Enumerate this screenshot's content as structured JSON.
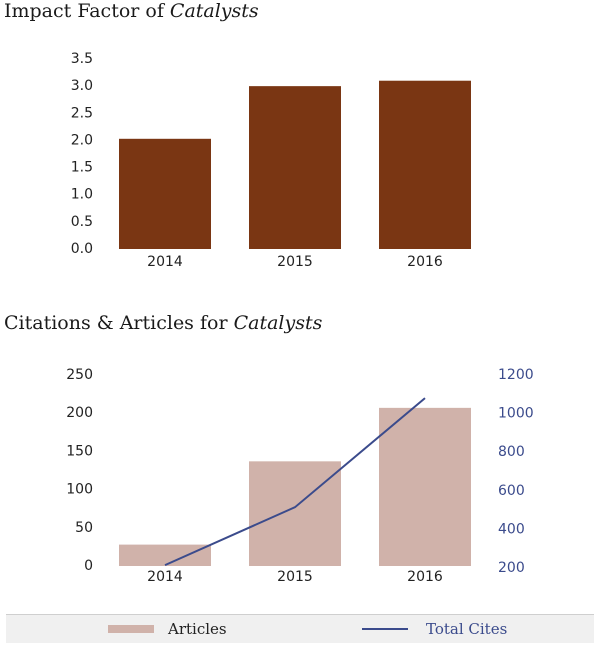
{
  "charts": {
    "impact": {
      "title_prefix": "Impact Factor of ",
      "title_journal": "Catalysts"
    },
    "citations": {
      "title_prefix": "Citations & Articles for ",
      "title_journal": "Catalysts"
    }
  },
  "legend": {
    "articles_label": "Articles",
    "cites_label": "Total Cites"
  },
  "colors": {
    "impact_bar": "#7a3613",
    "articles_bar": "#d0b2aa",
    "cites_line": "#3b4b8c",
    "right_axis_text": "#3b4b8c"
  },
  "chart_data": [
    {
      "type": "bar",
      "title": "Impact Factor of Catalysts",
      "categories": [
        "2014",
        "2015",
        "2016"
      ],
      "values": [
        2.03,
        3.0,
        3.1
      ],
      "ylim": [
        0,
        3.5
      ],
      "yticks": [
        "0.0",
        "0.5",
        "1.0",
        "1.5",
        "2.0",
        "2.5",
        "3.0",
        "3.5"
      ],
      "grid": false
    },
    {
      "type": "bar+line",
      "title": "Citations & Articles for Catalysts",
      "categories": [
        "2014",
        "2015",
        "2016"
      ],
      "series": [
        {
          "name": "Articles",
          "type": "bar",
          "axis": "left",
          "values": [
            28,
            137,
            207
          ]
        },
        {
          "name": "Total Cites",
          "type": "line",
          "axis": "right",
          "values": [
            215,
            515,
            1080
          ]
        }
      ],
      "ylim_left": [
        0,
        250
      ],
      "yticks_left": [
        "0",
        "50",
        "100",
        "150",
        "200",
        "250"
      ],
      "ylim_right": [
        200,
        1200
      ],
      "yticks_right": [
        "200",
        "400",
        "600",
        "800",
        "1000",
        "1200"
      ],
      "legend": "bottom",
      "grid": false
    }
  ]
}
